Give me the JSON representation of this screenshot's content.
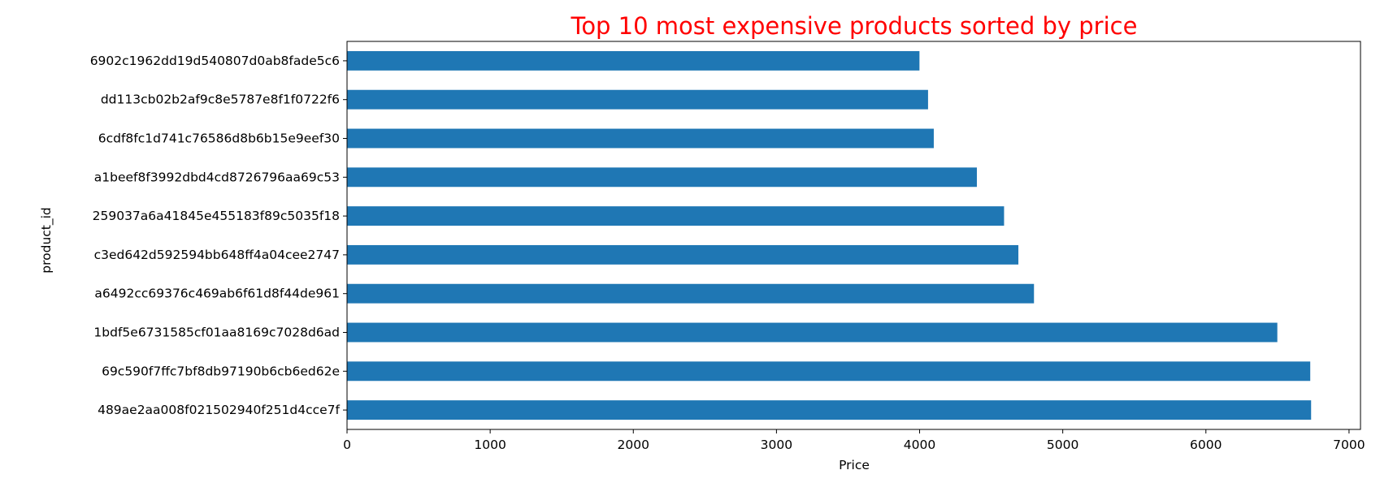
{
  "colors": {
    "title": "#ff0000",
    "bar": "#1f77b4",
    "axis": "#000000",
    "background": "#ffffff"
  },
  "chart_data": {
    "type": "bar",
    "orientation": "horizontal",
    "title": "Top 10 most expensive products sorted by price",
    "xlabel": "Price",
    "ylabel": "product_id",
    "grid": false,
    "legend": false,
    "xlim": [
      0,
      7080
    ],
    "xticks": [
      0,
      1000,
      2000,
      3000,
      4000,
      5000,
      6000,
      7000
    ],
    "categories": [
      "489ae2aa008f021502940f251d4cce7f",
      "69c590f7ffc7bf8db97190b6cb6ed62e",
      "1bdf5e6731585cf01aa8169c7028d6ad",
      "a6492cc69376c469ab6f61d8f44de961",
      "c3ed642d592594bb648ff4a04cee2747",
      "259037a6a41845e455183f89c5035f18",
      "a1beef8f3992dbd4cd8726796aa69c53",
      "6cdf8fc1d741c76586d8b6b15e9eef30",
      "dd113cb02b2af9c8e5787e8f1f0722f6",
      "6902c1962dd19d540807d0ab8fade5c6"
    ],
    "values": [
      6735,
      6729,
      6499,
      4799,
      4690,
      4590,
      4400,
      4099,
      4059,
      3999
    ]
  }
}
